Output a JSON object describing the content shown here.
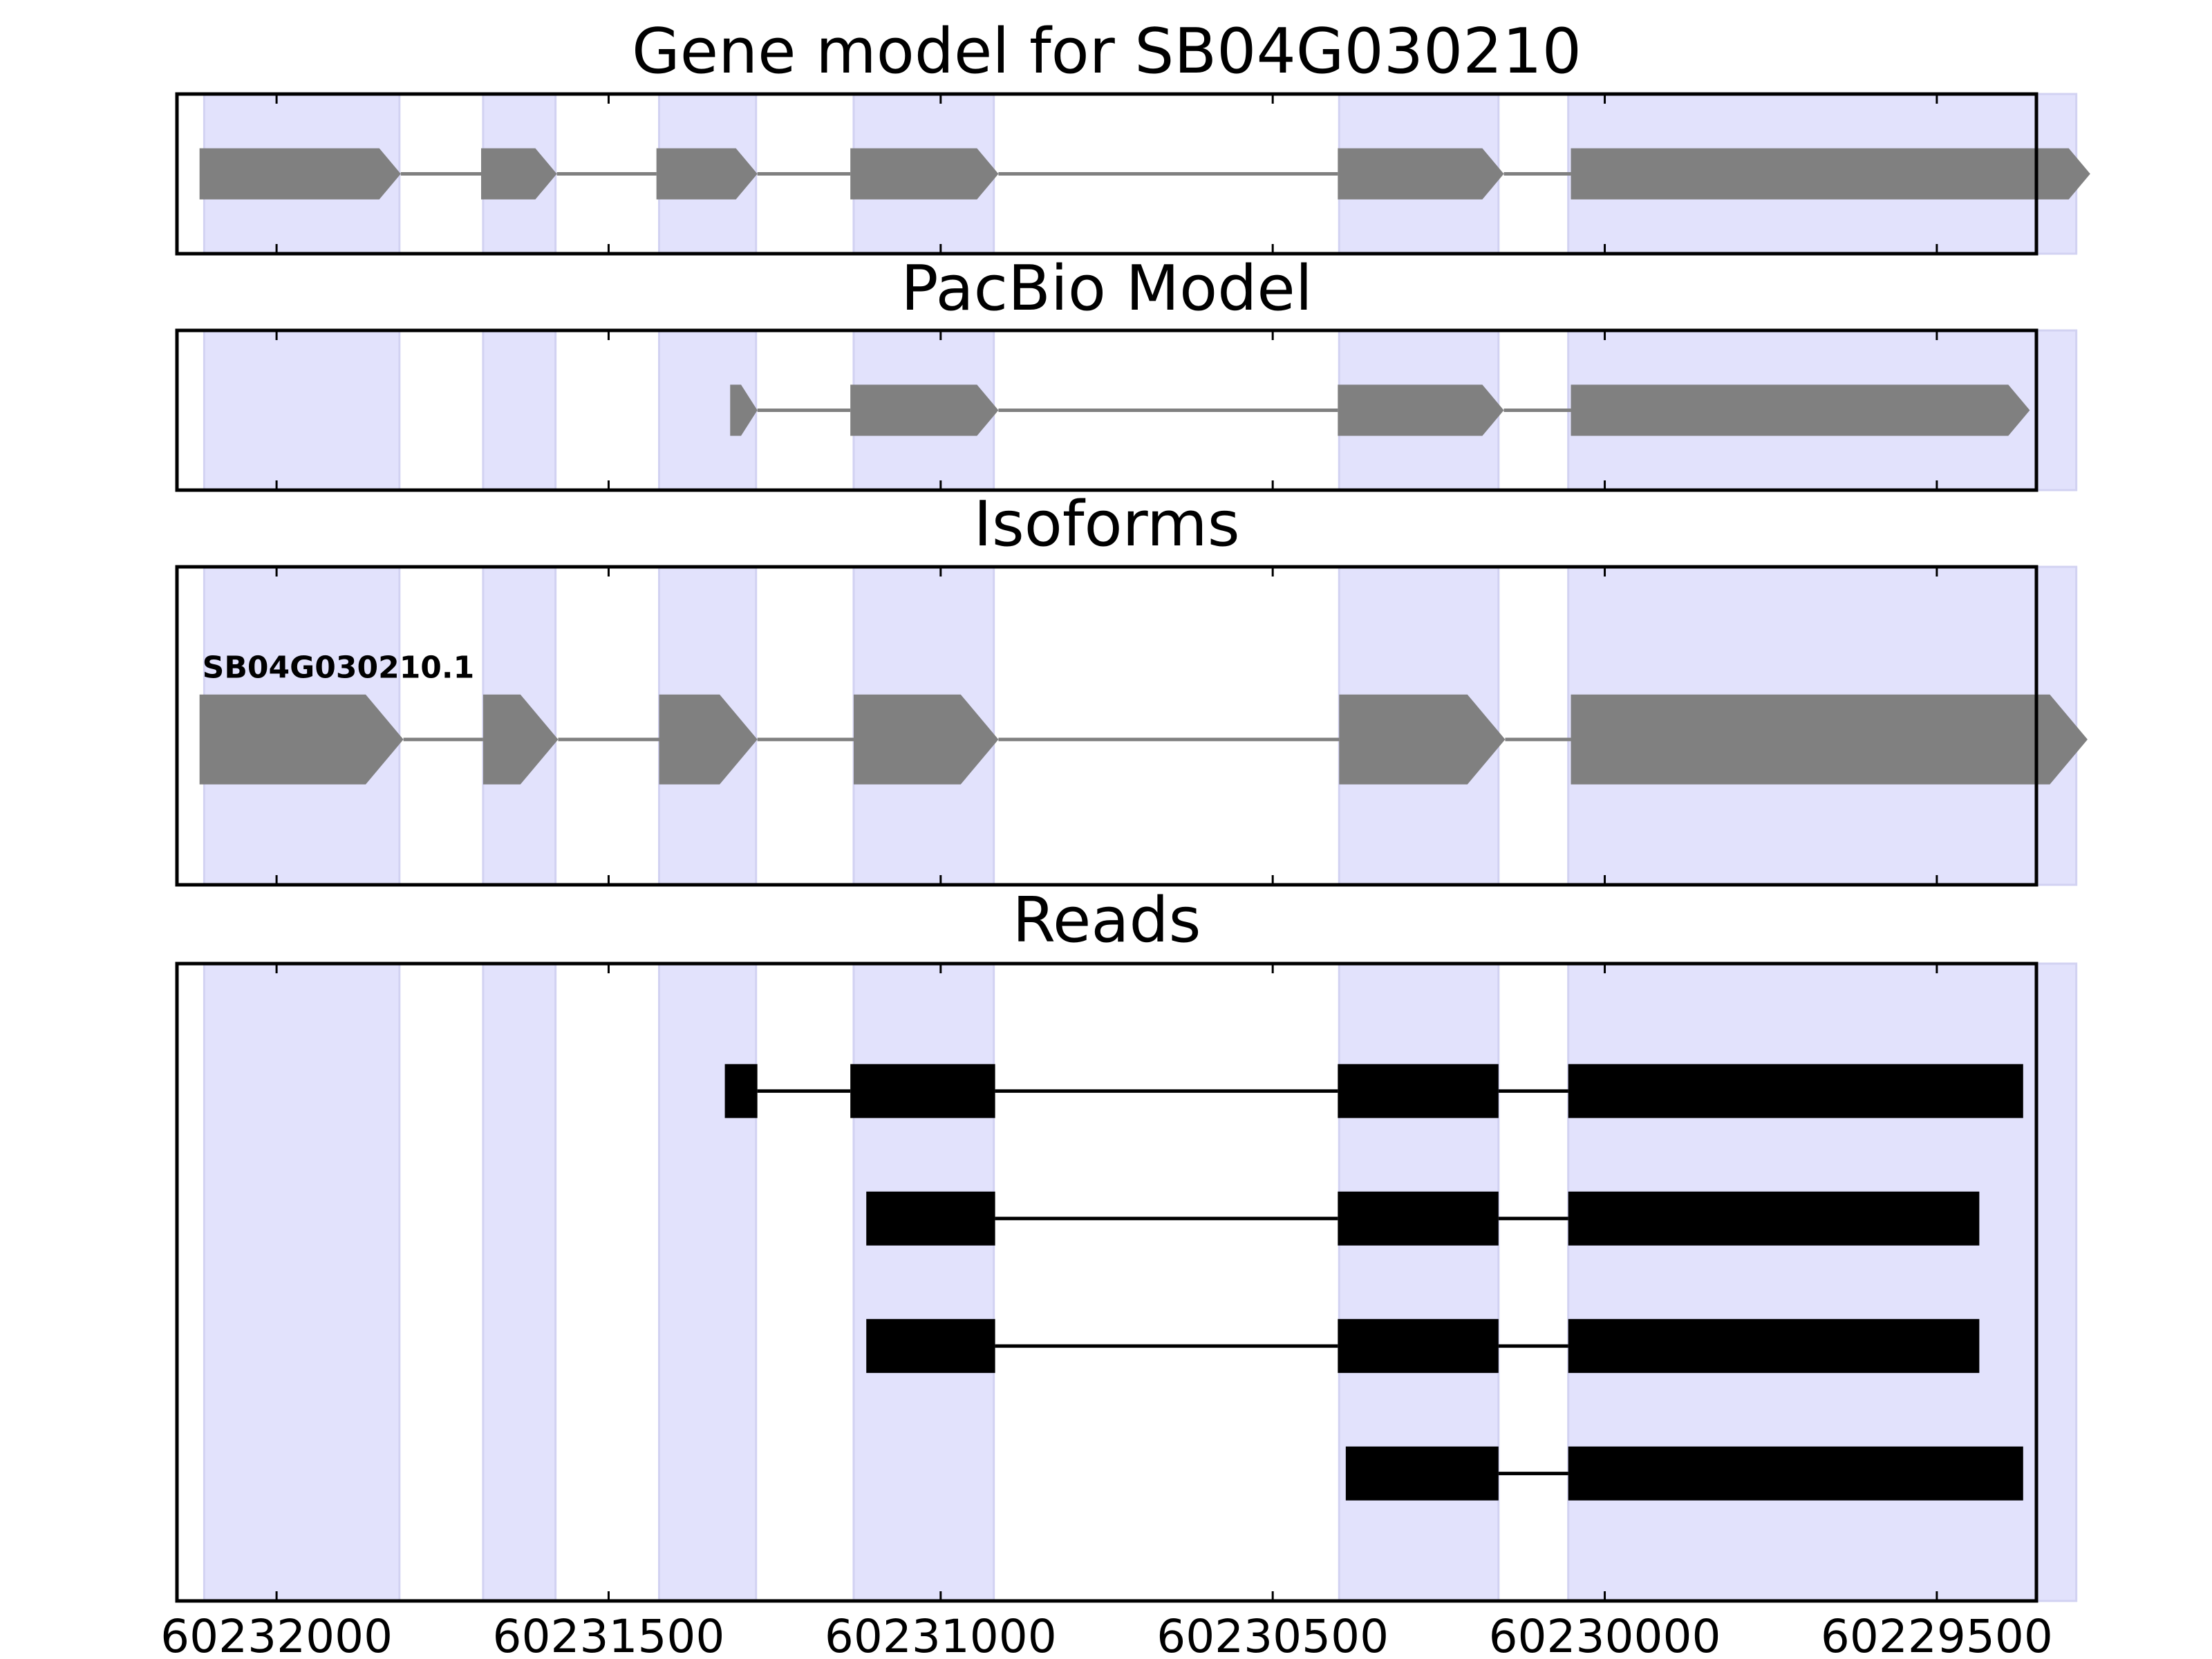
{
  "colors": {
    "exon_band": "#e2e2fc",
    "exon_band_edge": "#d2d2f2",
    "model_fill": "#808080",
    "model_line": "#808080",
    "read_fill": "#000000",
    "read_line": "#000000",
    "frame": "#000000"
  },
  "x_axis": {
    "reversed": true,
    "range": [
      60232150,
      60229350
    ],
    "ticks": [
      60232000,
      60231500,
      60231000,
      60230500,
      60230000,
      60229500
    ],
    "tick_labels": [
      "60232000",
      "60231500",
      "60231000",
      "60230500",
      "60230000",
      "60229500"
    ]
  },
  "exon_bands": [
    [
      60232109,
      60231815
    ],
    [
      60231689,
      60231580
    ],
    [
      60231424,
      60231278
    ],
    [
      60231131,
      60230920
    ],
    [
      60230400,
      60230160
    ],
    [
      60230055,
      60229290
    ]
  ],
  "panels": [
    {
      "id": "gene-model",
      "title": "Gene model for SB04G030210",
      "kind": "model",
      "strand": "-",
      "ylim": [
        0,
        3
      ],
      "features": [
        {
          "label": "",
          "y": 1.5,
          "exons": [
            [
              60232116,
              60231813
            ],
            [
              60231692,
              60231578
            ],
            [
              60231428,
              60231276
            ],
            [
              60231136,
              60230913
            ],
            [
              60230402,
              60230152
            ],
            [
              60230051,
              60229269
            ]
          ]
        }
      ]
    },
    {
      "id": "pacbio-model",
      "title": "PacBio Model",
      "kind": "model",
      "strand": "-",
      "ylim": [
        0,
        3
      ],
      "features": [
        {
          "label": "",
          "y": 1.5,
          "exons": [
            [
              60231317,
              60231276
            ],
            [
              60231136,
              60230913
            ],
            [
              60230402,
              60230152
            ],
            [
              60230051,
              60229360
            ]
          ]
        }
      ]
    },
    {
      "id": "isoforms",
      "title": "Isoforms",
      "kind": "model",
      "strand": "-",
      "ylim": [
        0,
        3.5
      ],
      "features": [
        {
          "label": "SB04G030210.1",
          "y": 1.6,
          "exons": [
            [
              60232116,
              60231809
            ],
            [
              60231689,
              60231576
            ],
            [
              60231424,
              60231276
            ],
            [
              60231131,
              60230913
            ],
            [
              60230400,
              60230150
            ],
            [
              60230051,
              60229273
            ]
          ]
        }
      ]
    },
    {
      "id": "reads",
      "title": "Reads",
      "kind": "reads",
      "ylim": [
        0,
        5
      ],
      "features": [
        {
          "label": "",
          "y": 4,
          "exons": [
            [
              60231325,
              60231276
            ],
            [
              60231136,
              60230918
            ],
            [
              60230402,
              60230160
            ],
            [
              60230055,
              60229370
            ]
          ]
        },
        {
          "label": "",
          "y": 3,
          "exons": [
            [
              60231112,
              60230918
            ],
            [
              60230402,
              60230160
            ],
            [
              60230055,
              60229436
            ]
          ]
        },
        {
          "label": "",
          "y": 2,
          "exons": [
            [
              60231112,
              60230918
            ],
            [
              60230402,
              60230160
            ],
            [
              60230055,
              60229436
            ]
          ]
        },
        {
          "label": "",
          "y": 1,
          "exons": [
            [
              60230390,
              60230160
            ],
            [
              60230055,
              60229370
            ]
          ]
        }
      ]
    }
  ]
}
